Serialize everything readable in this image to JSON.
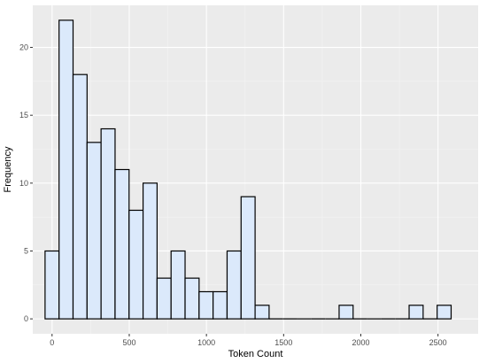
{
  "chart_data": {
    "type": "bar",
    "subtype": "histogram",
    "title": "",
    "xlabel": "Token Count",
    "ylabel": "Frequency",
    "bin_width": 90.7,
    "bin_start": -45.35,
    "counts": [
      5,
      22,
      18,
      13,
      14,
      11,
      8,
      10,
      3,
      5,
      3,
      2,
      2,
      5,
      9,
      1,
      0,
      0,
      0,
      0,
      0,
      1,
      0,
      0,
      0,
      0,
      1,
      0,
      1
    ],
    "xlim": [
      -125,
      2760
    ],
    "ylim": [
      -1.1,
      23.1
    ],
    "x_ticks": [
      0,
      500,
      1000,
      1500,
      2000,
      2500
    ],
    "y_ticks": [
      0,
      5,
      10,
      15,
      20
    ],
    "grid": true,
    "legend": "none",
    "colors": {
      "panel_background": "#ebebeb",
      "grid_major": "#ffffff",
      "grid_minor": "#f4f4f4",
      "bar_fill": "#dbe9fb",
      "bar_outline": "#000000"
    }
  }
}
